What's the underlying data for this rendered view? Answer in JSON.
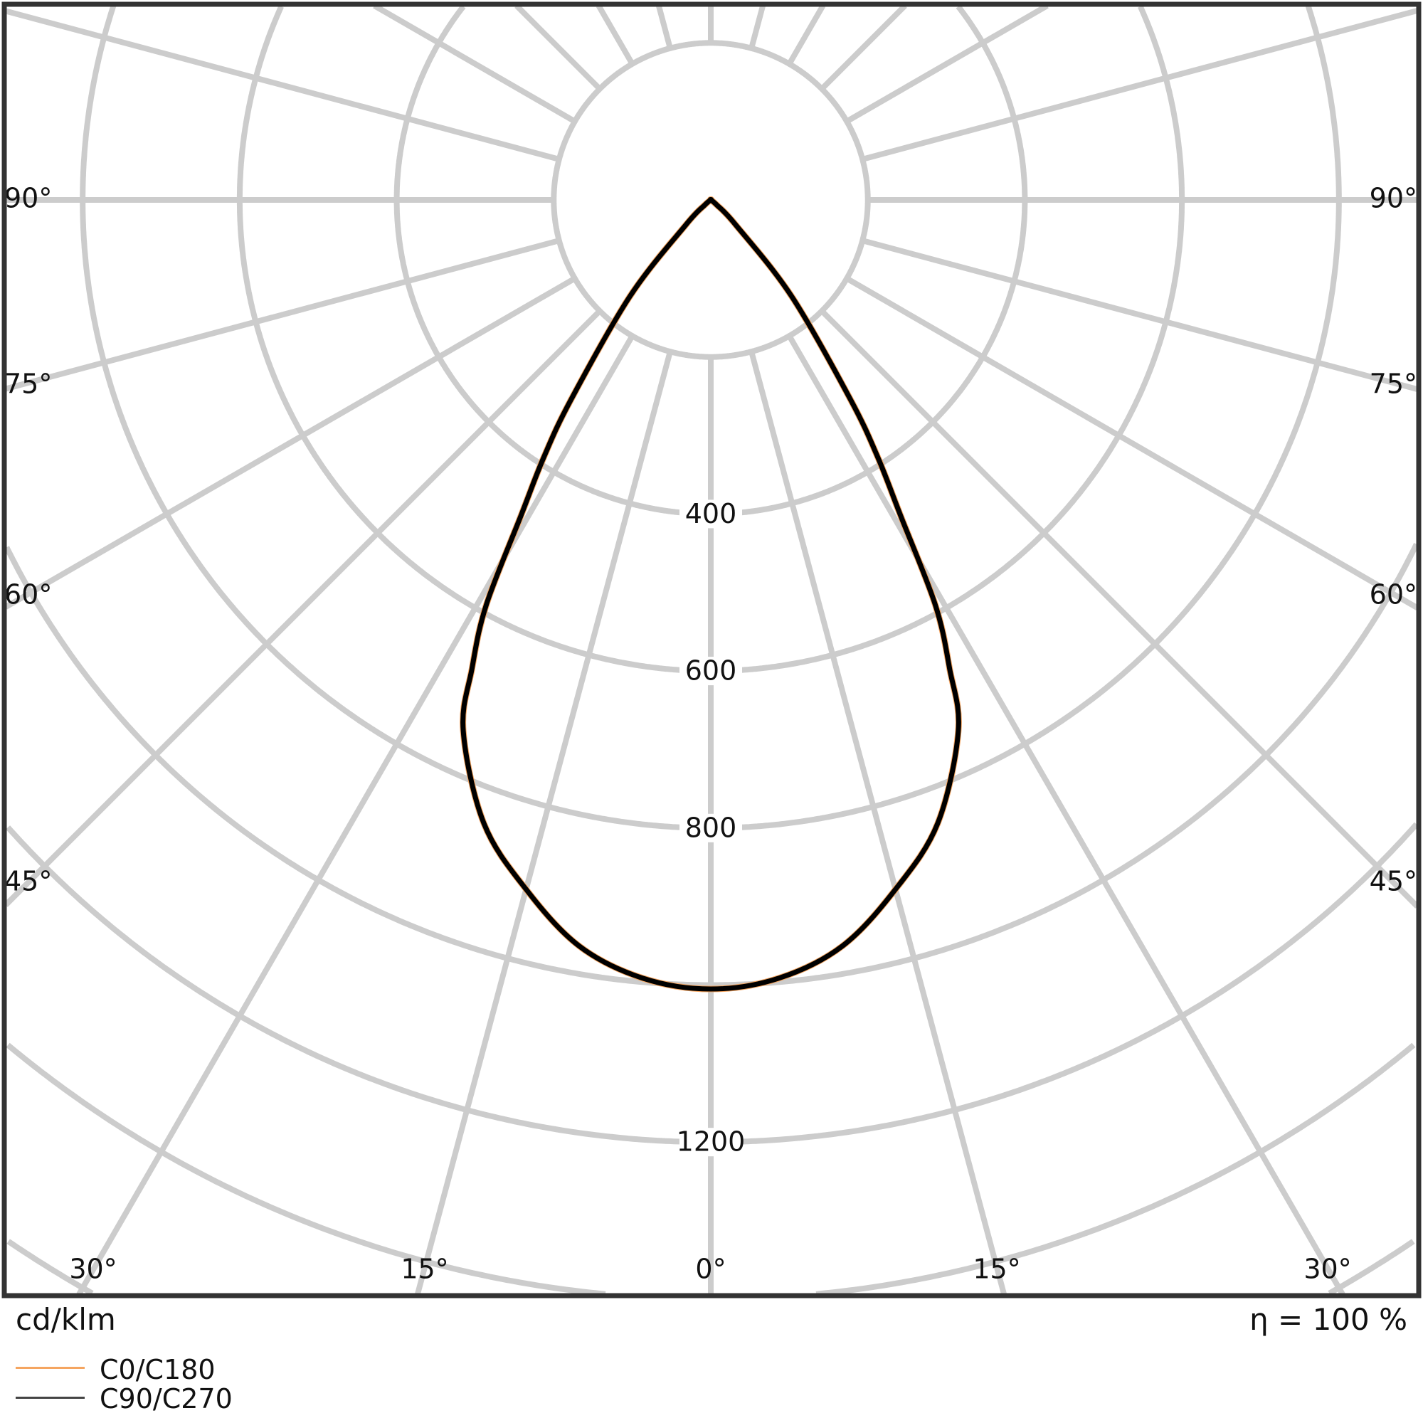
{
  "chart_data": {
    "type": "polar",
    "unit_label": "cd/klm",
    "efficiency_label": "η = 100 %",
    "radial_ticks": [
      200,
      400,
      600,
      800,
      1000,
      1200,
      1400,
      1600,
      1800
    ],
    "radial_tick_labels": [
      "400",
      "600",
      "800",
      "1200"
    ],
    "radial_labeled_values": [
      400,
      600,
      800,
      1200
    ],
    "angle_spoke_step_deg": 15,
    "side_angle_labels": [
      "90°",
      "75°",
      "60°",
      "45°"
    ],
    "bottom_angle_labels": [
      "30°",
      "15°",
      "0°",
      "15°",
      "30°"
    ],
    "grid": true,
    "legend_position": "bottom-left",
    "angles_deg": [
      0,
      5,
      10,
      15,
      20,
      25,
      27,
      29,
      31,
      33,
      35,
      40,
      45,
      50,
      60,
      70,
      80,
      90
    ],
    "series": [
      {
        "name": "C0/C180",
        "color": "#f5a560",
        "values": [
          1005,
          995,
          965,
          909,
          845,
          746,
          670,
          590,
          470,
          390,
          310,
          160,
          45,
          10,
          0,
          0,
          0,
          0
        ]
      },
      {
        "name": "C90/C270",
        "color": "#000000",
        "values": [
          1005,
          995,
          965,
          909,
          845,
          746,
          670,
          590,
          470,
          390,
          310,
          160,
          45,
          10,
          0,
          0,
          0,
          0
        ]
      }
    ],
    "grid_color": "#cccccc",
    "frame_color": "#333333"
  }
}
